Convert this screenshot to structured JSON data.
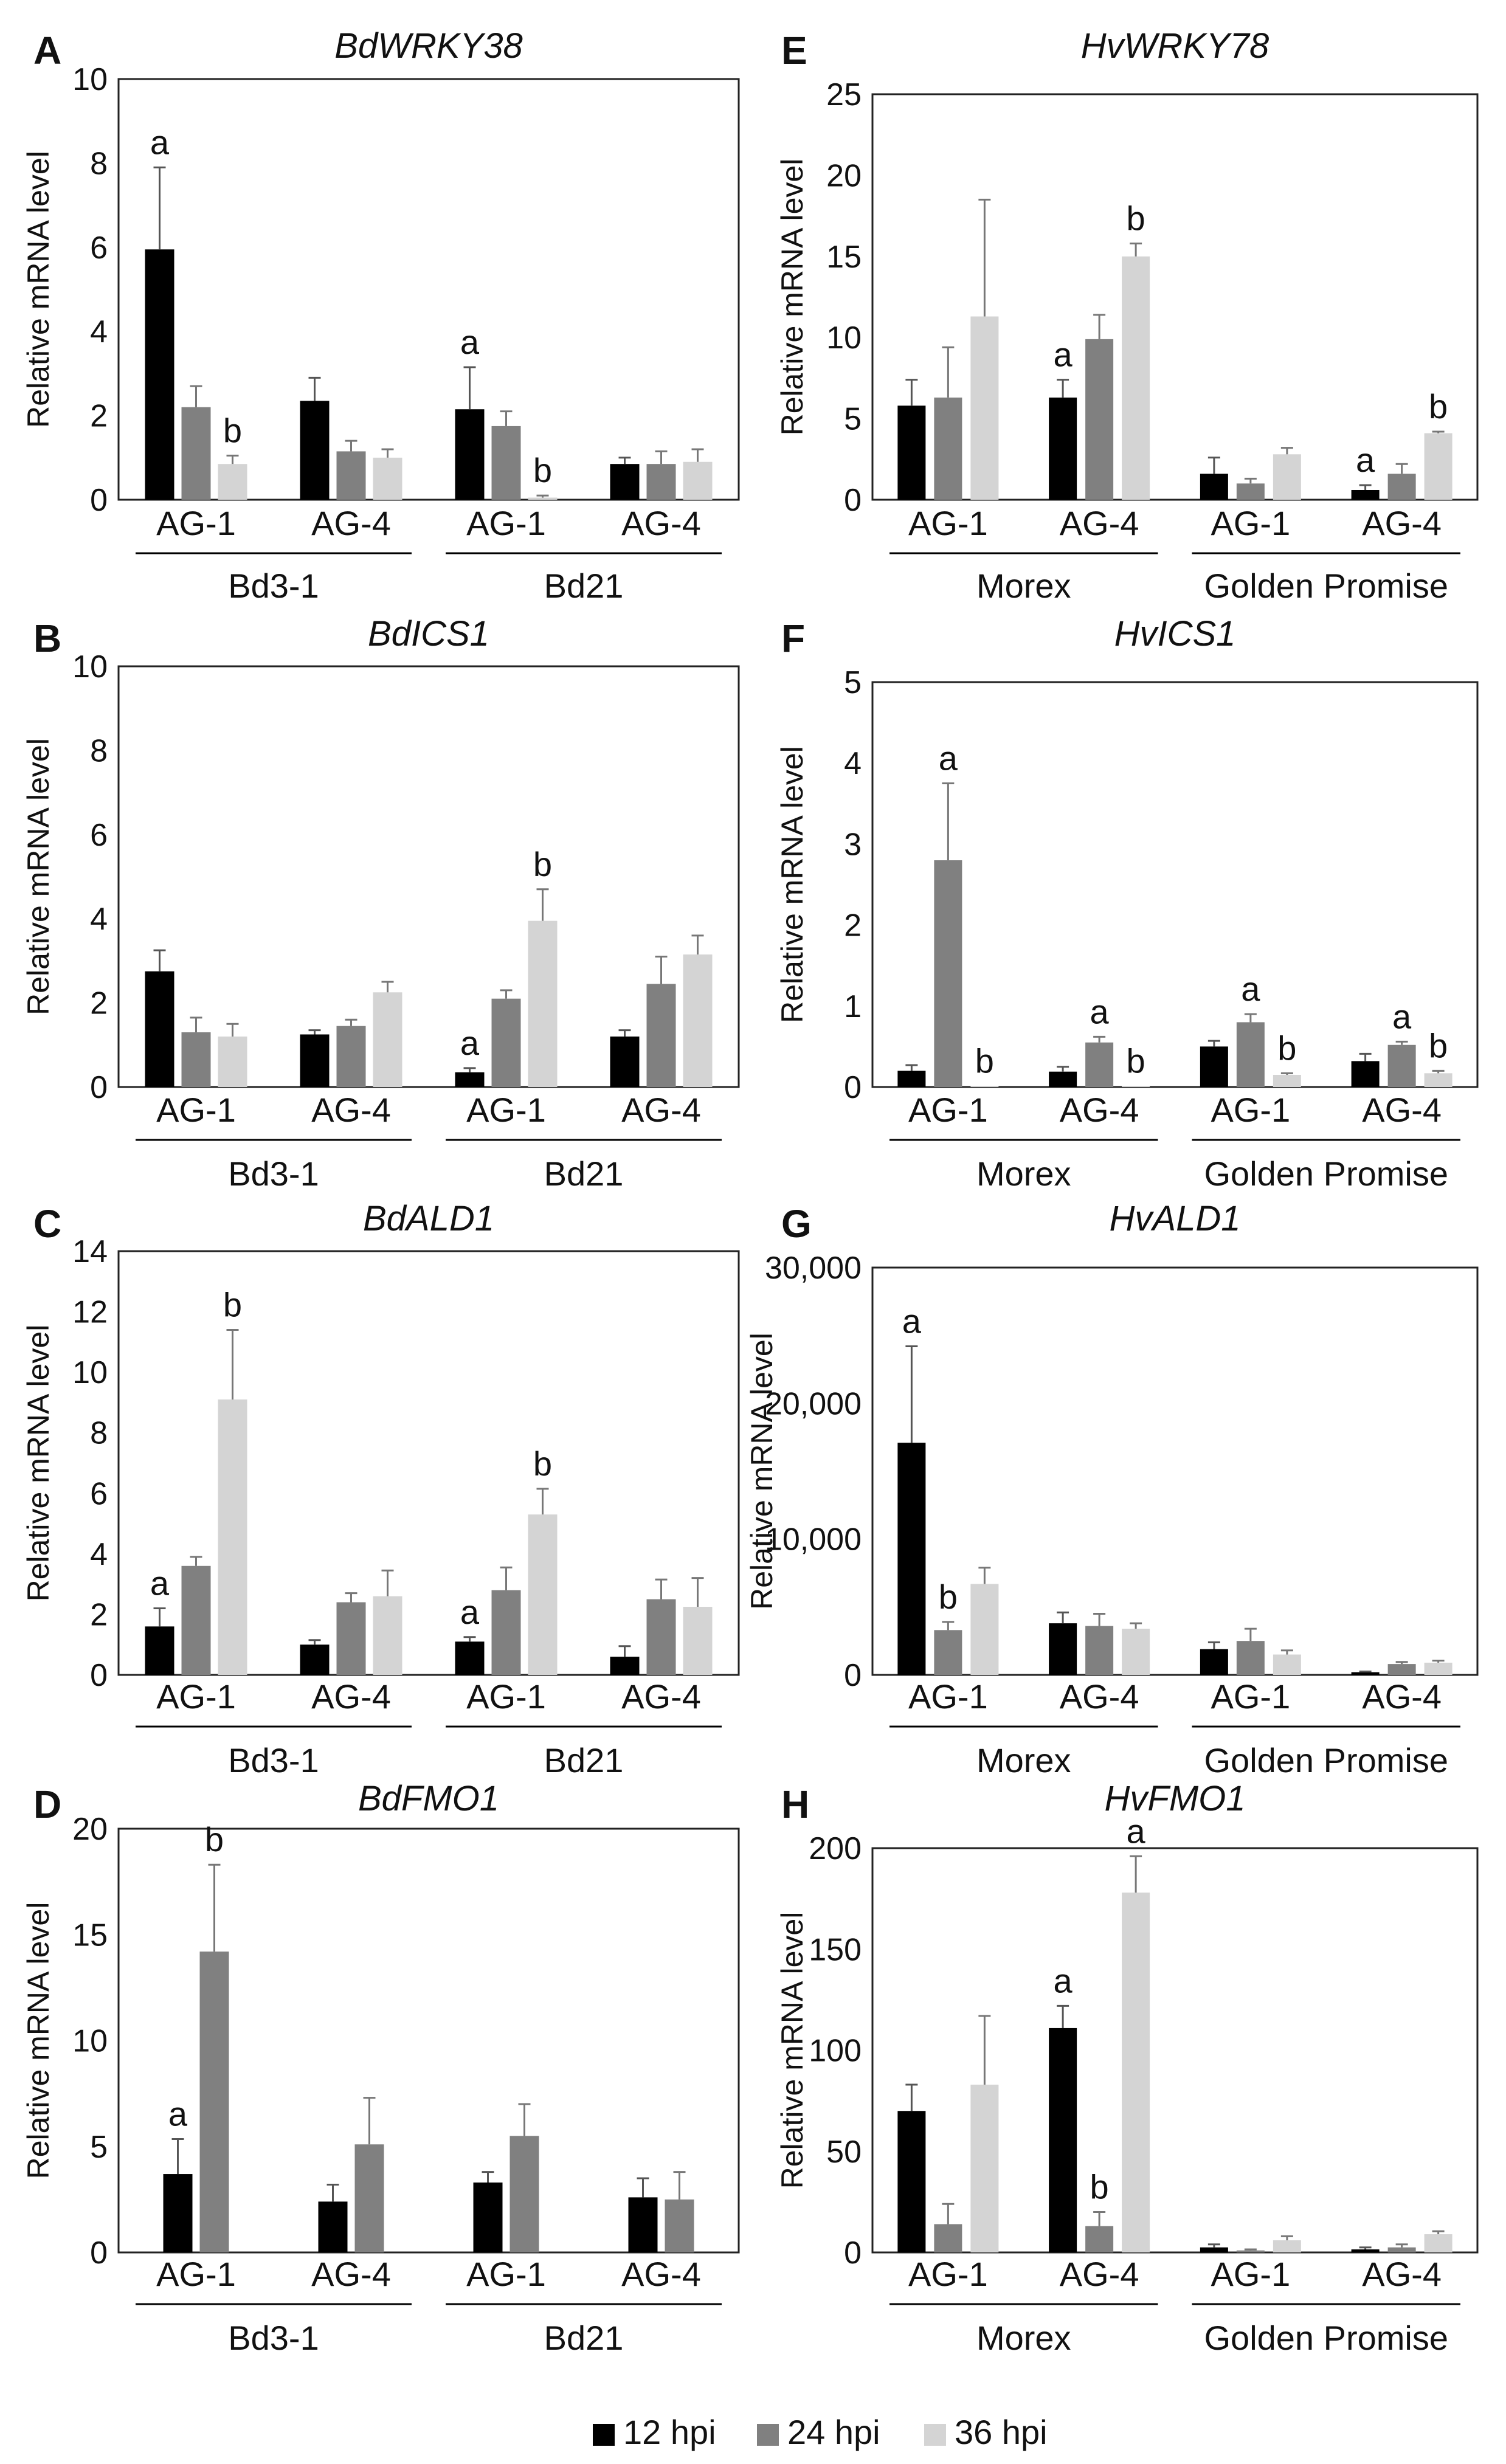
{
  "colors": {
    "h12": "#000000",
    "h24": "#808080",
    "h36": "#d4d4d4",
    "axis": "#000000"
  },
  "legend": [
    {
      "label": "12 hpi",
      "color_key": "h12"
    },
    {
      "label": "24 hpi",
      "color_key": "h24"
    },
    {
      "label": "36 hpi",
      "color_key": "h36"
    }
  ],
  "chart_data": [
    {
      "panel": "A",
      "type": "bar",
      "title": "BdWRKY38",
      "ylabel": "Relative mRNA level",
      "ylim": [
        0,
        10
      ],
      "yticks": [
        "0",
        "2",
        "4",
        "6",
        "8",
        "10"
      ],
      "categories": [
        "AG-1",
        "AG-4",
        "AG-1",
        "AG-4"
      ],
      "groups": [
        "Bd3-1",
        "Bd21"
      ],
      "series": [
        {
          "name": "12 hpi",
          "values": [
            5.95,
            2.35,
            2.15,
            0.85
          ],
          "errors": [
            1.95,
            0.55,
            1.0,
            0.15
          ],
          "letters": [
            "a",
            "",
            "a",
            ""
          ]
        },
        {
          "name": "24 hpi",
          "values": [
            2.2,
            1.15,
            1.75,
            0.85
          ],
          "errors": [
            0.5,
            0.25,
            0.35,
            0.3
          ],
          "letters": [
            "",
            "",
            "",
            ""
          ]
        },
        {
          "name": "36 hpi",
          "values": [
            0.85,
            1.0,
            0.05,
            0.9
          ],
          "errors": [
            0.2,
            0.2,
            0.05,
            0.3
          ],
          "letters": [
            "b",
            "",
            "b",
            ""
          ]
        }
      ]
    },
    {
      "panel": "B",
      "type": "bar",
      "title": "BdICS1",
      "ylabel": "Relative mRNA level",
      "ylim": [
        0,
        10
      ],
      "yticks": [
        "0",
        "2",
        "4",
        "6",
        "8",
        "10"
      ],
      "categories": [
        "AG-1",
        "AG-4",
        "AG-1",
        "AG-4"
      ],
      "groups": [
        "Bd3-1",
        "Bd21"
      ],
      "series": [
        {
          "name": "12 hpi",
          "values": [
            2.75,
            1.25,
            0.35,
            1.2
          ],
          "errors": [
            0.5,
            0.1,
            0.1,
            0.15
          ],
          "letters": [
            "",
            "",
            "a",
            ""
          ]
        },
        {
          "name": "24 hpi",
          "values": [
            1.3,
            1.45,
            2.1,
            2.45
          ],
          "errors": [
            0.35,
            0.15,
            0.2,
            0.65
          ],
          "letters": [
            "",
            "",
            "",
            ""
          ]
        },
        {
          "name": "36 hpi",
          "values": [
            1.2,
            2.25,
            3.95,
            3.15
          ],
          "errors": [
            0.3,
            0.25,
            0.75,
            0.45
          ],
          "letters": [
            "",
            "",
            "b",
            ""
          ]
        }
      ]
    },
    {
      "panel": "C",
      "type": "bar",
      "title": "BdALD1",
      "ylabel": "Relative mRNA level",
      "ylim": [
        0,
        14
      ],
      "yticks": [
        "0",
        "2",
        "4",
        "6",
        "8",
        "10",
        "12",
        "14"
      ],
      "categories": [
        "AG-1",
        "AG-4",
        "AG-1",
        "AG-4"
      ],
      "groups": [
        "Bd3-1",
        "Bd21"
      ],
      "series": [
        {
          "name": "12 hpi",
          "values": [
            1.6,
            1.0,
            1.1,
            0.6
          ],
          "errors": [
            0.6,
            0.15,
            0.15,
            0.35
          ],
          "letters": [
            "a",
            "",
            "a",
            ""
          ]
        },
        {
          "name": "24 hpi",
          "values": [
            3.6,
            2.4,
            2.8,
            2.5
          ],
          "errors": [
            0.3,
            0.3,
            0.75,
            0.65
          ],
          "letters": [
            "",
            "",
            "",
            ""
          ]
        },
        {
          "name": "36 hpi",
          "values": [
            9.1,
            2.6,
            5.3,
            2.25
          ],
          "errors": [
            2.3,
            0.85,
            0.85,
            0.95
          ],
          "letters": [
            "b",
            "",
            "b",
            ""
          ]
        }
      ]
    },
    {
      "panel": "D",
      "type": "bar",
      "title": "BdFMO1",
      "ylabel": "Relative mRNA level",
      "ylim": [
        0,
        20
      ],
      "yticks": [
        "0",
        "5",
        "10",
        "15",
        "20"
      ],
      "categories": [
        "AG-1",
        "AG-4",
        "AG-1",
        "AG-4"
      ],
      "groups": [
        "Bd3-1",
        "Bd21"
      ],
      "series": [
        {
          "name": "12 hpi",
          "values": [
            3.7,
            2.4,
            3.3,
            2.6
          ],
          "errors": [
            1.65,
            0.8,
            0.5,
            0.9
          ],
          "letters": [
            "a",
            "",
            "",
            ""
          ]
        },
        {
          "name": "24 hpi",
          "values": [
            14.2,
            5.1,
            5.5,
            2.5
          ],
          "errors": [
            4.1,
            2.2,
            1.5,
            1.3
          ],
          "letters": [
            "b",
            "",
            "",
            ""
          ]
        }
      ]
    },
    {
      "panel": "E",
      "type": "bar",
      "title": "HvWRKY78",
      "ylabel": "Relative mRNA level",
      "ylim": [
        0,
        25
      ],
      "yticks": [
        "0",
        "5",
        "10",
        "15",
        "20",
        "25"
      ],
      "categories": [
        "AG-1",
        "AG-4",
        "AG-1",
        "AG-4"
      ],
      "groups": [
        "Morex",
        "Golden Promise"
      ],
      "series": [
        {
          "name": "12 hpi",
          "values": [
            5.8,
            6.3,
            1.6,
            0.6
          ],
          "errors": [
            1.6,
            1.1,
            1.0,
            0.3
          ],
          "letters": [
            "",
            "a",
            "",
            "a"
          ]
        },
        {
          "name": "24 hpi",
          "values": [
            6.3,
            9.9,
            1.0,
            1.6
          ],
          "errors": [
            3.1,
            1.5,
            0.3,
            0.6
          ],
          "letters": [
            "",
            "",
            "",
            ""
          ]
        },
        {
          "name": "36 hpi",
          "values": [
            11.3,
            15.0,
            2.8,
            4.1
          ],
          "errors": [
            7.2,
            0.8,
            0.4,
            0.1
          ],
          "letters": [
            "",
            "b",
            "",
            "b"
          ]
        }
      ]
    },
    {
      "panel": "F",
      "type": "bar",
      "title": "HvICS1",
      "ylabel": "Relative mRNA level",
      "ylim": [
        0,
        5
      ],
      "yticks": [
        "0",
        "1",
        "2",
        "3",
        "4",
        "5"
      ],
      "categories": [
        "AG-1",
        "AG-4",
        "AG-1",
        "AG-4"
      ],
      "groups": [
        "Morex",
        "Golden Promise"
      ],
      "series": [
        {
          "name": "12 hpi",
          "values": [
            0.2,
            0.19,
            0.5,
            0.32
          ],
          "errors": [
            0.07,
            0.06,
            0.07,
            0.09
          ],
          "letters": [
            "",
            "",
            "",
            ""
          ]
        },
        {
          "name": "24 hpi",
          "values": [
            2.8,
            0.55,
            0.8,
            0.52
          ],
          "errors": [
            0.95,
            0.07,
            0.1,
            0.04
          ],
          "letters": [
            "a",
            "a",
            "a",
            "a"
          ]
        },
        {
          "name": "36 hpi",
          "values": [
            0.01,
            0.01,
            0.15,
            0.17
          ],
          "errors": [
            0.0,
            0.0,
            0.02,
            0.03
          ],
          "letters": [
            "b",
            "b",
            "b",
            "b"
          ]
        }
      ]
    },
    {
      "panel": "G",
      "type": "bar",
      "title": "HvALD1",
      "ylabel": "Relative mRNA level",
      "ylim": [
        0,
        30000
      ],
      "yticks": [
        "0",
        "10,000",
        "20,000",
        "30,000"
      ],
      "categories": [
        "AG-1",
        "AG-4",
        "AG-1",
        "AG-4"
      ],
      "groups": [
        "Morex",
        "Golden Promise"
      ],
      "series": [
        {
          "name": "12 hpi",
          "values": [
            17100,
            3800,
            1900,
            200
          ],
          "errors": [
            7100,
            800,
            500,
            50
          ],
          "letters": [
            "a",
            "",
            "",
            ""
          ]
        },
        {
          "name": "24 hpi",
          "values": [
            3300,
            3600,
            2500,
            800
          ],
          "errors": [
            600,
            900,
            900,
            150
          ],
          "letters": [
            "b",
            "",
            "",
            ""
          ]
        },
        {
          "name": "36 hpi",
          "values": [
            6700,
            3400,
            1500,
            900
          ],
          "errors": [
            1200,
            400,
            300,
            150
          ],
          "letters": [
            "",
            "",
            "",
            ""
          ]
        }
      ]
    },
    {
      "panel": "H",
      "type": "bar",
      "title": "HvFMO1",
      "ylabel": "Relative mRNA level",
      "ylim": [
        0,
        200
      ],
      "yticks": [
        "0",
        "50",
        "100",
        "150",
        "200"
      ],
      "categories": [
        "AG-1",
        "AG-4",
        "AG-1",
        "AG-4"
      ],
      "groups": [
        "Morex",
        "Golden Promise"
      ],
      "series": [
        {
          "name": "12 hpi",
          "values": [
            70,
            111,
            2.5,
            1.5
          ],
          "errors": [
            13,
            11,
            1.5,
            1.0
          ],
          "letters": [
            "",
            "a",
            "",
            ""
          ]
        },
        {
          "name": "24 hpi",
          "values": [
            14,
            13,
            1.0,
            2.5
          ],
          "errors": [
            10,
            7,
            0.5,
            1.5
          ],
          "letters": [
            "",
            "b",
            "",
            ""
          ]
        },
        {
          "name": "36 hpi",
          "values": [
            83,
            178,
            6,
            9
          ],
          "errors": [
            34,
            18,
            2,
            1.5
          ],
          "letters": [
            "",
            "a",
            "",
            ""
          ]
        }
      ]
    }
  ]
}
